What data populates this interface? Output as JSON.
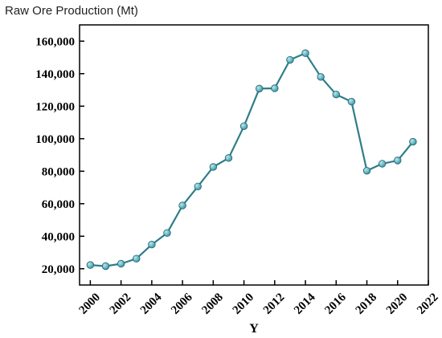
{
  "chart_data": {
    "type": "line",
    "title": "Raw Ore Production (Mt)",
    "xlabel": "Y",
    "ylabel": "",
    "xlim": [
      1999.3,
      2022
    ],
    "ylim": [
      10000,
      170000
    ],
    "x_ticks": [
      "2000",
      "2002",
      "2004",
      "2006",
      "2008",
      "2010",
      "2012",
      "2014",
      "2016",
      "2018",
      "2020",
      "2022"
    ],
    "y_ticks": [
      "20,000",
      "40,000",
      "60,000",
      "80,000",
      "100,000",
      "120,000",
      "140,000",
      "160,000"
    ],
    "grid": false,
    "legend": "none",
    "colors": {
      "line": "#2e7d8a",
      "marker": "#3a9aa8",
      "marker_highlight": "#bfe6ec"
    },
    "series": [
      {
        "x": [
          2000,
          2001,
          2002,
          2003,
          2004,
          2005,
          2006,
          2007,
          2008,
          2009,
          2010,
          2011,
          2012,
          2013,
          2014,
          2015,
          2016,
          2017,
          2018,
          2019,
          2020,
          2021
        ],
        "values": [
          22300,
          21600,
          23100,
          26200,
          34900,
          42000,
          58900,
          70600,
          82600,
          88100,
          107700,
          130800,
          131000,
          148500,
          152600,
          138000,
          127200,
          122800,
          80300,
          84600,
          86600,
          98100
        ]
      }
    ]
  }
}
